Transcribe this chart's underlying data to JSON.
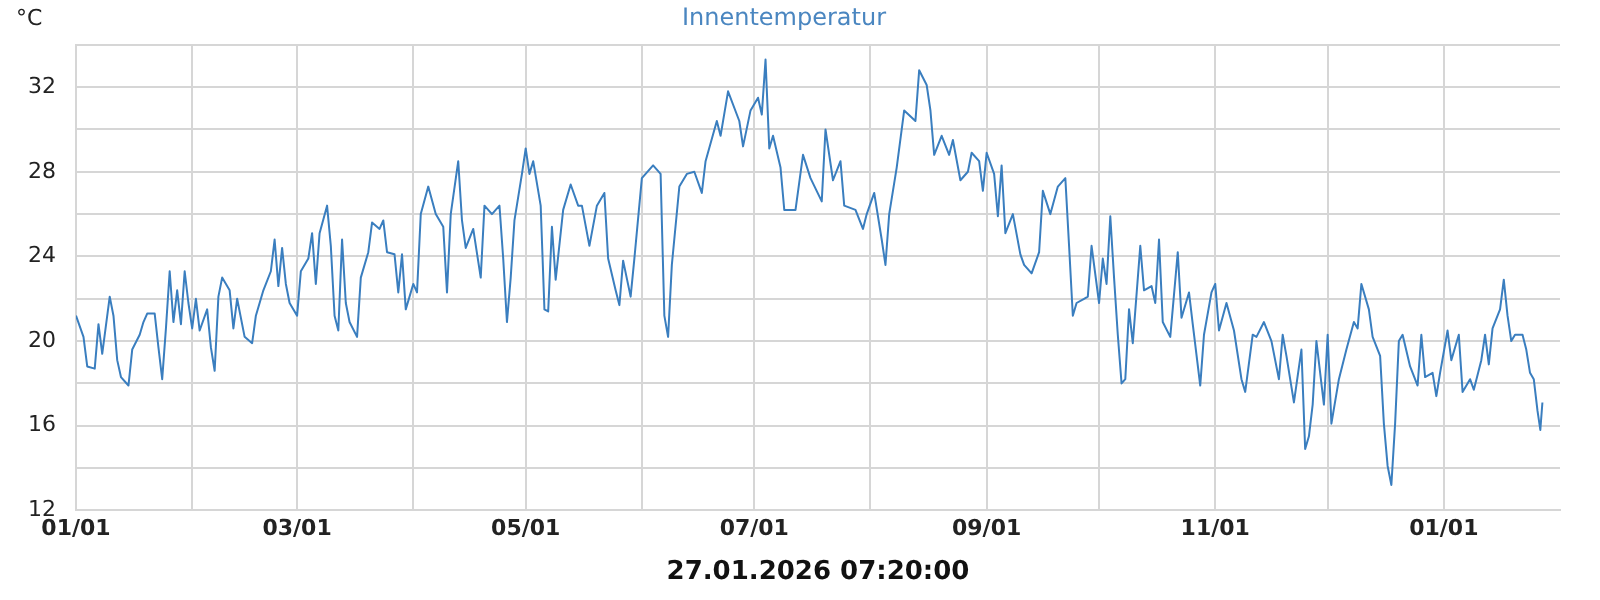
{
  "chart_data": {
    "type": "line",
    "title": "Innentemperatur",
    "xlabel": "27.01.2026 07:20:00",
    "ylabel": "°C",
    "xlim": [
      "2025-01-01",
      "2026-02-01"
    ],
    "xticks": [
      {
        "value": "2025-01-01",
        "label": "01/01"
      },
      {
        "value": "2025-02-01",
        "label": null
      },
      {
        "value": "2025-03-01",
        "label": "03/01"
      },
      {
        "value": "2025-04-01",
        "label": null
      },
      {
        "value": "2025-05-01",
        "label": "05/01"
      },
      {
        "value": "2025-06-01",
        "label": null
      },
      {
        "value": "2025-07-01",
        "label": "07/01"
      },
      {
        "value": "2025-08-01",
        "label": null
      },
      {
        "value": "2025-09-01",
        "label": "09/01"
      },
      {
        "value": "2025-10-01",
        "label": null
      },
      {
        "value": "2025-11-01",
        "label": "11/01"
      },
      {
        "value": "2025-12-01",
        "label": null
      },
      {
        "value": "2026-01-01",
        "label": "01/01"
      }
    ],
    "ylim": [
      12,
      34
    ],
    "yticks": [
      12,
      {
        "value": 14,
        "label": null
      },
      16,
      {
        "value": 18,
        "label": null
      },
      20,
      {
        "value": 22,
        "label": null
      },
      24,
      {
        "value": 26,
        "label": null
      },
      28,
      {
        "value": 30,
        "label": null
      },
      32,
      {
        "value": 34,
        "label": null
      }
    ],
    "grid": true,
    "legend": false,
    "marker": "none",
    "line_style": "solid",
    "series": [
      {
        "color": "#3a7ebf",
        "x": [
          "2025-01-01",
          "2025-01-03",
          "2025-01-04",
          "2025-01-06",
          "2025-01-07",
          "2025-01-08",
          "2025-01-10",
          "2025-01-11",
          "2025-01-12",
          "2025-01-13",
          "2025-01-15",
          "2025-01-16",
          "2025-01-18",
          "2025-01-19",
          "2025-01-20",
          "2025-01-22",
          "2025-01-23",
          "2025-01-24",
          "2025-01-25",
          "2025-01-26",
          "2025-01-27",
          "2025-01-28",
          "2025-01-29",
          "2025-01-30",
          "2025-01-31",
          "2025-02-01",
          "2025-02-02",
          "2025-02-03",
          "2025-02-05",
          "2025-02-06",
          "2025-02-07",
          "2025-02-08",
          "2025-02-09",
          "2025-02-11",
          "2025-02-12",
          "2025-02-13",
          "2025-02-15",
          "2025-02-17",
          "2025-02-18",
          "2025-02-20",
          "2025-02-22",
          "2025-02-23",
          "2025-02-24",
          "2025-02-25",
          "2025-02-26",
          "2025-02-27",
          "2025-03-01",
          "2025-03-02",
          "2025-03-04",
          "2025-03-05",
          "2025-03-06",
          "2025-03-07",
          "2025-03-09",
          "2025-03-10",
          "2025-03-11",
          "2025-03-12",
          "2025-03-13",
          "2025-03-14",
          "2025-03-15",
          "2025-03-17",
          "2025-03-18",
          "2025-03-20",
          "2025-03-21",
          "2025-03-23",
          "2025-03-24",
          "2025-03-25",
          "2025-03-27",
          "2025-03-28",
          "2025-03-29",
          "2025-03-30",
          "2025-04-01",
          "2025-04-02",
          "2025-04-03",
          "2025-04-05",
          "2025-04-07",
          "2025-04-09",
          "2025-04-10",
          "2025-04-11",
          "2025-04-13",
          "2025-04-14",
          "2025-04-15",
          "2025-04-17",
          "2025-04-19",
          "2025-04-20",
          "2025-04-22",
          "2025-04-24",
          "2025-04-25",
          "2025-04-26",
          "2025-04-27",
          "2025-04-28",
          "2025-04-30",
          "2025-05-01",
          "2025-05-02",
          "2025-05-03",
          "2025-05-05",
          "2025-05-06",
          "2025-05-07",
          "2025-05-08",
          "2025-05-09",
          "2025-05-11",
          "2025-05-13",
          "2025-05-15",
          "2025-05-16",
          "2025-05-18",
          "2025-05-20",
          "2025-05-22",
          "2025-05-23",
          "2025-05-25",
          "2025-05-26",
          "2025-05-27",
          "2025-05-29",
          "2025-05-30",
          "2025-06-01",
          "2025-06-02",
          "2025-06-04",
          "2025-06-06",
          "2025-06-07",
          "2025-06-08",
          "2025-06-09",
          "2025-06-11",
          "2025-06-13",
          "2025-06-15",
          "2025-06-17",
          "2025-06-18",
          "2025-06-21",
          "2025-06-22",
          "2025-06-24",
          "2025-06-27",
          "2025-06-28",
          "2025-06-30",
          "2025-07-02",
          "2025-07-03",
          "2025-07-04",
          "2025-07-05",
          "2025-07-06",
          "2025-07-08",
          "2025-07-09",
          "2025-07-12",
          "2025-07-14",
          "2025-07-16",
          "2025-07-19",
          "2025-07-20",
          "2025-07-22",
          "2025-07-24",
          "2025-07-25",
          "2025-07-28",
          "2025-07-30",
          "2025-07-31",
          "2025-08-02",
          "2025-08-04",
          "2025-08-05",
          "2025-08-06",
          "2025-08-08",
          "2025-08-10",
          "2025-08-13",
          "2025-08-14",
          "2025-08-16",
          "2025-08-17",
          "2025-08-18",
          "2025-08-20",
          "2025-08-22",
          "2025-08-23",
          "2025-08-25",
          "2025-08-27",
          "2025-08-28",
          "2025-08-30",
          "2025-08-31",
          "2025-09-01",
          "2025-09-03",
          "2025-09-04",
          "2025-09-05",
          "2025-09-06",
          "2025-09-08",
          "2025-09-10",
          "2025-09-11",
          "2025-09-13",
          "2025-09-15",
          "2025-09-16",
          "2025-09-18",
          "2025-09-20",
          "2025-09-22",
          "2025-09-23",
          "2025-09-24",
          "2025-09-25",
          "2025-09-27",
          "2025-09-28",
          "2025-09-29",
          "2025-10-01",
          "2025-10-02",
          "2025-10-03",
          "2025-10-04",
          "2025-10-05",
          "2025-10-06",
          "2025-10-07",
          "2025-10-08",
          "2025-10-09",
          "2025-10-10",
          "2025-10-12",
          "2025-10-13",
          "2025-10-15",
          "2025-10-16",
          "2025-10-17",
          "2025-10-18",
          "2025-10-20",
          "2025-10-22",
          "2025-10-23",
          "2025-10-25",
          "2025-10-26",
          "2025-10-28",
          "2025-10-29",
          "2025-10-31",
          "2025-11-01",
          "2025-11-02",
          "2025-11-04",
          "2025-11-06",
          "2025-11-08",
          "2025-11-09",
          "2025-11-11",
          "2025-11-12",
          "2025-11-14",
          "2025-11-16",
          "2025-11-18",
          "2025-11-19",
          "2025-11-20",
          "2025-11-22",
          "2025-11-24",
          "2025-11-25",
          "2025-11-26",
          "2025-11-27",
          "2025-11-28",
          "2025-11-30",
          "2025-12-01",
          "2025-12-02",
          "2025-12-04",
          "2025-12-06",
          "2025-12-08",
          "2025-12-09",
          "2025-12-10",
          "2025-12-12",
          "2025-12-13",
          "2025-12-15",
          "2025-12-16",
          "2025-12-17",
          "2025-12-18",
          "2025-12-19",
          "2025-12-20",
          "2025-12-21",
          "2025-12-23",
          "2025-12-25",
          "2025-12-26",
          "2025-12-27",
          "2025-12-29",
          "2025-12-30",
          "2025-12-31",
          "2026-01-02",
          "2026-01-03",
          "2026-01-05",
          "2026-01-06",
          "2026-01-08",
          "2026-01-09",
          "2026-01-11",
          "2026-01-12",
          "2026-01-13",
          "2026-01-14",
          "2026-01-16",
          "2026-01-17",
          "2026-01-18",
          "2026-01-19",
          "2026-01-20",
          "2026-01-22",
          "2026-01-23",
          "2026-01-24",
          "2026-01-25",
          "2026-01-26",
          "2026-01-26T18:00",
          "2026-01-27T07:20"
        ],
        "values": [
          21.2,
          20.2,
          18.8,
          18.7,
          20.8,
          19.4,
          22.1,
          21.2,
          19.1,
          18.3,
          17.9,
          19.6,
          20.3,
          20.9,
          21.3,
          21.3,
          19.7,
          18.2,
          20.6,
          23.3,
          20.9,
          22.4,
          20.8,
          23.3,
          21.8,
          20.6,
          22.0,
          20.5,
          21.5,
          19.7,
          18.6,
          22.1,
          23.0,
          22.4,
          20.6,
          22.0,
          20.2,
          19.9,
          21.2,
          22.4,
          23.3,
          24.8,
          22.6,
          24.4,
          22.7,
          21.8,
          21.2,
          23.3,
          23.9,
          25.1,
          22.7,
          25.1,
          26.4,
          24.5,
          21.2,
          20.5,
          24.8,
          21.8,
          20.9,
          20.2,
          23.0,
          24.2,
          25.6,
          25.3,
          25.7,
          24.2,
          24.1,
          22.3,
          24.1,
          21.5,
          22.7,
          22.3,
          26.0,
          27.3,
          26.0,
          25.4,
          22.3,
          26.0,
          28.5,
          25.7,
          24.4,
          25.3,
          23.0,
          26.4,
          26.0,
          26.4,
          23.9,
          20.9,
          23.0,
          25.7,
          27.9,
          29.1,
          27.9,
          28.5,
          26.4,
          21.5,
          21.4,
          25.4,
          22.9,
          26.2,
          27.4,
          26.4,
          26.4,
          24.5,
          26.4,
          27.0,
          23.9,
          22.4,
          21.7,
          23.8,
          22.1,
          23.9,
          27.7,
          27.9,
          28.3,
          27.9,
          21.2,
          20.2,
          23.6,
          27.3,
          27.9,
          28.0,
          27.0,
          28.5,
          30.4,
          29.7,
          31.8,
          30.4,
          29.2,
          30.9,
          31.5,
          30.7,
          33.3,
          29.1,
          29.7,
          28.2,
          26.2,
          26.2,
          28.8,
          27.7,
          26.6,
          30.0,
          27.6,
          28.5,
          26.4,
          26.2,
          25.3,
          26.0,
          27.0,
          24.8,
          23.6,
          26.0,
          28.2,
          30.9,
          30.4,
          32.8,
          32.1,
          30.9,
          28.8,
          29.7,
          28.8,
          29.5,
          27.6,
          28.0,
          28.9,
          28.5,
          27.1,
          28.9,
          27.9,
          25.9,
          28.3,
          25.1,
          26.0,
          24.1,
          23.6,
          23.2,
          24.2,
          27.1,
          26.0,
          27.3,
          27.7,
          24.5,
          21.2,
          21.8,
          22.0,
          22.1,
          24.5,
          21.8,
          23.9,
          22.7,
          25.9,
          23.0,
          20.3,
          18.0,
          18.2,
          21.5,
          19.9,
          24.5,
          22.4,
          22.6,
          21.8,
          24.8,
          20.9,
          20.2,
          24.2,
          21.1,
          22.3,
          20.8,
          17.9,
          20.3,
          22.3,
          22.7,
          20.5,
          21.8,
          20.5,
          18.2,
          17.6,
          20.3,
          20.2,
          20.9,
          20.0,
          18.2,
          20.3,
          19.3,
          17.1,
          19.6,
          14.9,
          15.5,
          17.0,
          20.0,
          17.0,
          20.3,
          16.1,
          18.2,
          19.6,
          20.9,
          20.6,
          22.7,
          21.5,
          20.2,
          19.3,
          16.1,
          14.1,
          13.2,
          16.1,
          20.0,
          20.3,
          18.8,
          17.9,
          20.3,
          18.3,
          18.5,
          17.4,
          18.5,
          20.5,
          19.1,
          20.3,
          17.6,
          18.2,
          17.7,
          19.1,
          20.3,
          18.9,
          20.6,
          21.5,
          22.9,
          21.2,
          20.0,
          20.3,
          20.3,
          19.6,
          18.5,
          18.2,
          16.7,
          15.8,
          17.1
        ]
      }
    ]
  }
}
